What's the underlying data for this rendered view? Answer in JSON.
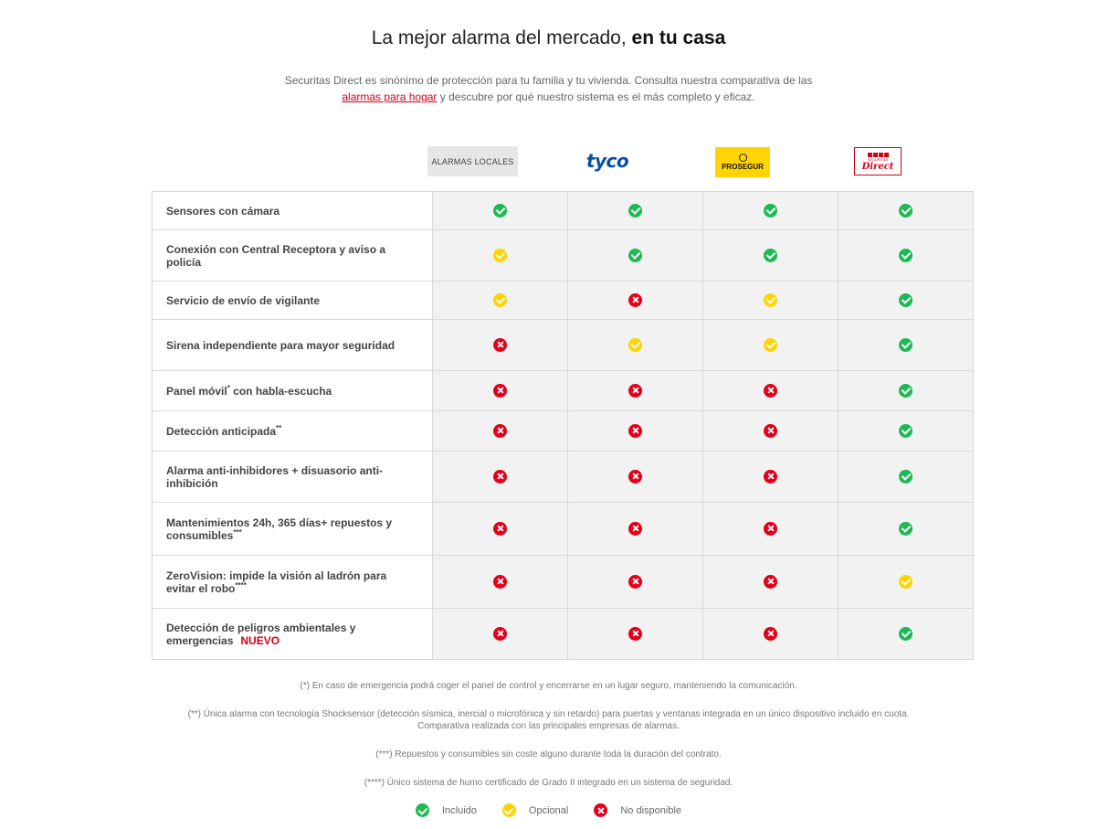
{
  "heading": {
    "light": "La mejor alarma del mercado,",
    "bold": "en tu casa"
  },
  "intro": {
    "before_link": "Securitas Direct es sinónimo de protección para tu familia y tu vivienda. Consulta nuestra comparativa de las ",
    "link": "alarmas para hogar",
    "after_link": " y descubre por qué nuestro sistema es el más completo y eficaz."
  },
  "columns": [
    {
      "id": "local",
      "label": "ALARMAS LOCALES"
    },
    {
      "id": "tyco",
      "label": "tyco"
    },
    {
      "id": "prosegur",
      "label": "PROSEGUR"
    },
    {
      "id": "securitas",
      "label": "Direct",
      "small": "SECURITAS"
    }
  ],
  "rows": [
    {
      "label": "Sensores con cámara",
      "sup": "",
      "badge": "",
      "marks": [
        "included",
        "included",
        "included",
        "included"
      ]
    },
    {
      "label": "Conexión con Central Receptora y aviso a policía",
      "sup": "",
      "badge": "",
      "marks": [
        "optional",
        "included",
        "included",
        "included"
      ]
    },
    {
      "label": "Servicio de envío de vigilante",
      "sup": "",
      "badge": "",
      "marks": [
        "optional",
        "unavailable",
        "optional",
        "included"
      ]
    },
    {
      "label": "Sirena independiente para mayor seguridad",
      "sup": "",
      "badge": "",
      "marks": [
        "unavailable",
        "optional",
        "optional",
        "included"
      ]
    },
    {
      "label": "Panel móvil",
      "sup": "*",
      "after_sup": " con habla-escucha",
      "badge": "",
      "marks": [
        "unavailable",
        "unavailable",
        "unavailable",
        "included"
      ]
    },
    {
      "label": "Detección anticipada",
      "sup": "**",
      "badge": "",
      "marks": [
        "unavailable",
        "unavailable",
        "unavailable",
        "included"
      ]
    },
    {
      "label": "Alarma anti-inhibidores + disuasorio anti-inhibición",
      "sup": "",
      "badge": "",
      "marks": [
        "unavailable",
        "unavailable",
        "unavailable",
        "included"
      ]
    },
    {
      "label": "Mantenimientos 24h, 365 días+ repuestos y consumibles",
      "sup": "***",
      "badge": "",
      "marks": [
        "unavailable",
        "unavailable",
        "unavailable",
        "included"
      ]
    },
    {
      "label": "ZeroVision: impide la visión al ladrón para evitar el robo",
      "sup": "****",
      "badge": "",
      "marks": [
        "unavailable",
        "unavailable",
        "unavailable",
        "optional"
      ]
    },
    {
      "label": "Detección de peligros ambientales y emergencias",
      "sup": "",
      "badge": "NUEVO",
      "marks": [
        "unavailable",
        "unavailable",
        "unavailable",
        "included"
      ]
    }
  ],
  "notes": [
    "(*) En caso de emergencia podrá coger el panel de control y encerrarse en un lugar seguro, manteniendo la comunicación.",
    "(**) Única alarma con tecnología Shocksensor (detección sísmica, inercial o microfónica y sin retardo) para puertas y ventanas integrada en un único dispositivo incluido en cuota.",
    "Comparativa realizada con las principales empresas de alarmas.",
    "(***) Repuestos y consumibles sin coste alguno durante toda la duración del contrato.",
    "(****) Único sistema de humo certificado de Grado II integrado en un sistema de seguridad."
  ],
  "legend": {
    "included": "Incluido",
    "optional": "Opcional",
    "unavailable": "No disponible"
  },
  "icons": {
    "included": "check-circle-icon",
    "optional": "check-circle-icon",
    "unavailable": "x-circle-icon"
  },
  "colors": {
    "included": "#1db954",
    "optional": "#ffd400",
    "unavailable": "#e3001b",
    "accent": "#d0021b"
  }
}
